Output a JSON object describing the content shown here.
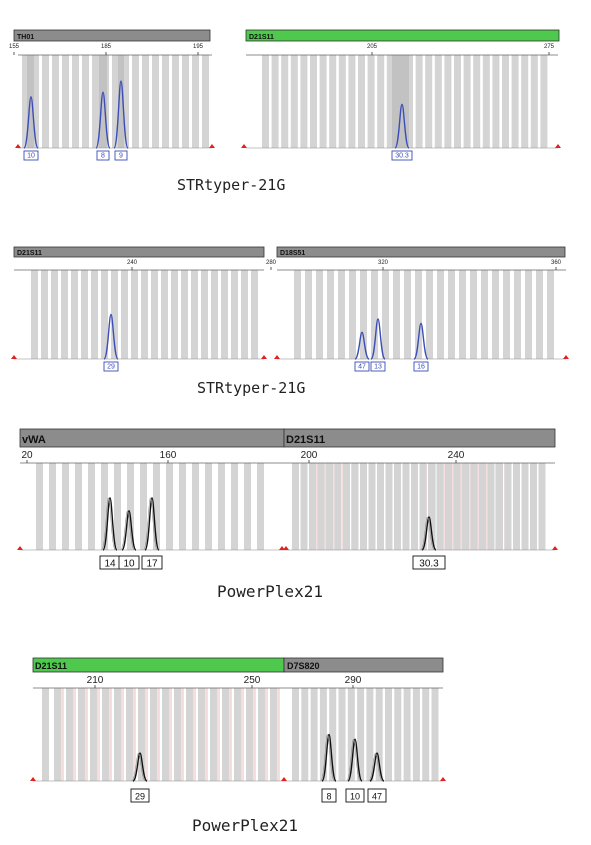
{
  "figure": {
    "panels": [
      {
        "caption": "STRtyper-21G",
        "style": "blue",
        "bars": [
          {
            "label": "TH01",
            "color": "gray"
          },
          {
            "label": "D21S11",
            "color": "green"
          }
        ],
        "ticks": [
          {
            "label": "155",
            "x": 155
          },
          {
            "label": "185",
            "x": 185
          },
          {
            "label": "195",
            "x": 195
          },
          {
            "label": "205",
            "x": 205
          },
          {
            "label": "275",
            "x": 275
          }
        ],
        "alleles": [
          "10",
          "8",
          "9",
          "30.3"
        ]
      },
      {
        "caption": "STRtyper-21G",
        "style": "blue",
        "bars": [
          {
            "label": "D21S11",
            "color": "gray"
          },
          {
            "label": "D18S51",
            "color": "gray"
          }
        ],
        "ticks": [
          {
            "label": "240",
            "x": 240
          },
          {
            "label": "280",
            "x": 280
          },
          {
            "label": "320",
            "x": 320
          },
          {
            "label": "360",
            "x": 360
          }
        ],
        "alleles": [
          "29",
          "47",
          "13",
          "16"
        ]
      },
      {
        "caption": "PowerPlex21",
        "style": "black",
        "bars": [
          {
            "label": "vWA",
            "color": "gray"
          },
          {
            "label": "D21S11",
            "color": "gray"
          }
        ],
        "ticks": [
          {
            "label": "20",
            "x": 20
          },
          {
            "label": "160",
            "x": 160
          },
          {
            "label": "200",
            "x": 200
          },
          {
            "label": "240",
            "x": 240
          }
        ],
        "alleles": [
          "14",
          "10",
          "17",
          "30.3"
        ]
      },
      {
        "caption": "PowerPlex21",
        "style": "black",
        "bars": [
          {
            "label": "D21S11",
            "color": "green"
          },
          {
            "label": "D7S820",
            "color": "gray"
          }
        ],
        "ticks": [
          {
            "label": "210",
            "x": 210
          },
          {
            "label": "250",
            "x": 250
          },
          {
            "label": "290",
            "x": 290
          }
        ],
        "alleles": [
          "29",
          "8",
          "10",
          "47"
        ]
      }
    ]
  },
  "chart_data": [
    {
      "type": "line",
      "loci": [
        "TH01",
        "D21S11"
      ],
      "x_ticks": [
        "155",
        "185",
        "195",
        "205",
        "275"
      ],
      "peaks": [
        {
          "allele": "10",
          "height": 0.55
        },
        {
          "allele": "8",
          "height": 0.6
        },
        {
          "allele": "9",
          "height": 0.72
        },
        {
          "allele": "30.3",
          "height": 0.47
        }
      ],
      "series_color": "#3b4db8"
    },
    {
      "type": "line",
      "loci": [
        "D21S11",
        "D18S51"
      ],
      "x_ticks": [
        "240",
        "280",
        "320",
        "360"
      ],
      "peaks": [
        {
          "allele": "29",
          "height": 0.5
        },
        {
          "allele": "47",
          "height": 0.3
        },
        {
          "allele": "13",
          "height": 0.45
        },
        {
          "allele": "16",
          "height": 0.4
        }
      ],
      "series_color": "#3b4db8"
    },
    {
      "type": "line",
      "loci": [
        "vWA",
        "D21S11"
      ],
      "x_ticks": [
        "20",
        "160",
        "200",
        "240"
      ],
      "peaks": [
        {
          "allele": "14",
          "height": 0.6
        },
        {
          "allele": "10",
          "height": 0.45
        },
        {
          "allele": "17",
          "height": 0.6
        },
        {
          "allele": "30.3",
          "height": 0.38
        }
      ],
      "series_color": "#111111"
    },
    {
      "type": "line",
      "loci": [
        "D21S11",
        "D7S820"
      ],
      "x_ticks": [
        "210",
        "250",
        "290"
      ],
      "peaks": [
        {
          "allele": "29",
          "height": 0.3
        },
        {
          "allele": "8",
          "height": 0.5
        },
        {
          "allele": "10",
          "height": 0.45
        },
        {
          "allele": "47",
          "height": 0.3
        }
      ],
      "series_color": "#111111"
    }
  ]
}
